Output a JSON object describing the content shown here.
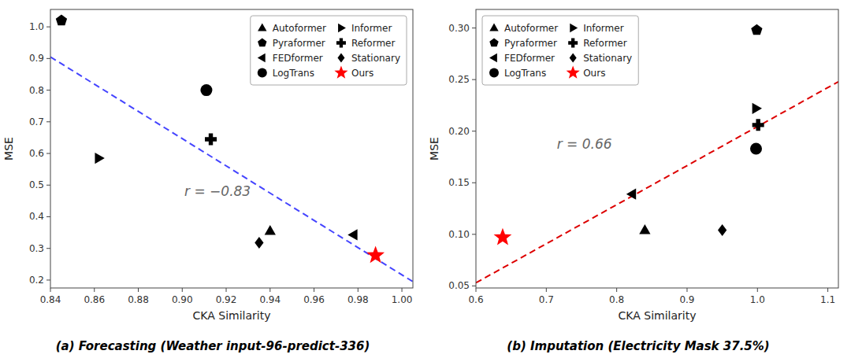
{
  "chart_data": [
    {
      "type": "scatter",
      "title": "(a) Forecasting (Weather input-96-predict-336)",
      "x_label": "CKA Similarity",
      "y_label": "MSE",
      "xlim": [
        0.84,
        1.005
      ],
      "ylim": [
        0.175,
        1.055
      ],
      "xticks": [
        0.84,
        0.86,
        0.88,
        {
          "value": 0.9,
          "label": "0.90"
        },
        0.92,
        0.94,
        0.96,
        0.98,
        {
          "value": 1.0,
          "label": "1.00"
        }
      ],
      "yticks": [
        0.2,
        0.3,
        0.4,
        0.5,
        0.6,
        0.7,
        0.8,
        0.9,
        {
          "value": 1.0,
          "label": "1.0"
        }
      ],
      "grid": false,
      "legend": "upper right",
      "annotations": [
        {
          "text": "r = −0.83",
          "x": 0.901,
          "y": 0.465
        }
      ],
      "series": [
        {
          "name": "Autoformer",
          "marker": "triangle-up",
          "color": "black",
          "x": [
            0.94
          ],
          "values": [
            0.355
          ]
        },
        {
          "name": "Pyraformer",
          "marker": "pentagon",
          "color": "black",
          "x": [
            0.845
          ],
          "values": [
            1.02
          ]
        },
        {
          "name": "FEDformer",
          "marker": "triangle-left",
          "color": "black",
          "x": [
            0.978
          ],
          "values": [
            0.343
          ]
        },
        {
          "name": "LogTrans",
          "marker": "circle",
          "color": "black",
          "x": [
            0.911
          ],
          "values": [
            0.8
          ]
        },
        {
          "name": "Informer",
          "marker": "triangle-right",
          "color": "black",
          "x": [
            0.862
          ],
          "values": [
            0.585
          ]
        },
        {
          "name": "Reformer",
          "marker": "plus",
          "color": "black",
          "x": [
            0.913
          ],
          "values": [
            0.645
          ]
        },
        {
          "name": "Stationary",
          "marker": "diamond",
          "color": "black",
          "x": [
            0.935
          ],
          "values": [
            0.318
          ]
        },
        {
          "name": "Ours",
          "marker": "star",
          "color": "red",
          "x": [
            0.988
          ],
          "values": [
            0.278
          ]
        },
        {
          "type": "line",
          "line_style": "dashed",
          "color": "#4444ff",
          "x": [
            0.84,
            1.005
          ],
          "values": [
            0.905,
            0.195
          ]
        }
      ]
    },
    {
      "type": "scatter",
      "title": "(b) Imputation (Electricity Mask 37.5%)",
      "x_label": "CKA Similarity",
      "y_label": "MSE",
      "xlim": [
        0.6,
        1.115
      ],
      "ylim": [
        0.048,
        0.318
      ],
      "xticks": [
        0.6,
        0.7,
        0.8,
        0.9,
        {
          "value": 1.0,
          "label": "1.0"
        },
        1.1
      ],
      "yticks": [
        0.05,
        {
          "value": 0.1,
          "label": "0.10"
        },
        0.15,
        {
          "value": 0.2,
          "label": "0.20"
        },
        0.25,
        {
          "value": 0.3,
          "label": "0.30"
        }
      ],
      "grid": false,
      "legend": "upper left",
      "annotations": [
        {
          "text": "r = 0.66",
          "x": 0.715,
          "y": 0.183
        }
      ],
      "series": [
        {
          "name": "Autoformer",
          "marker": "triangle-up",
          "color": "black",
          "x": [
            0.84
          ],
          "values": [
            0.104
          ]
        },
        {
          "name": "Pyraformer",
          "marker": "pentagon",
          "color": "black",
          "x": [
            0.999
          ],
          "values": [
            0.298
          ]
        },
        {
          "name": "FEDformer",
          "marker": "triangle-left",
          "color": "black",
          "x": [
            0.822
          ],
          "values": [
            0.139
          ]
        },
        {
          "name": "LogTrans",
          "marker": "circle",
          "color": "black",
          "x": [
            0.998
          ],
          "values": [
            0.183
          ]
        },
        {
          "name": "Informer",
          "marker": "triangle-right",
          "color": "black",
          "x": [
            0.998
          ],
          "values": [
            0.222
          ]
        },
        {
          "name": "Reformer",
          "marker": "plus",
          "color": "black",
          "x": [
            1.001
          ],
          "values": [
            0.206
          ]
        },
        {
          "name": "Stationary",
          "marker": "diamond",
          "color": "black",
          "x": [
            0.95
          ],
          "values": [
            0.104
          ]
        },
        {
          "name": "Ours",
          "marker": "star",
          "color": "red",
          "x": [
            0.638
          ],
          "values": [
            0.097
          ]
        },
        {
          "type": "line",
          "line_style": "dashed",
          "color": "#dd0000",
          "x": [
            0.6,
            1.115
          ],
          "values": [
            0.053,
            0.248
          ]
        }
      ]
    }
  ]
}
